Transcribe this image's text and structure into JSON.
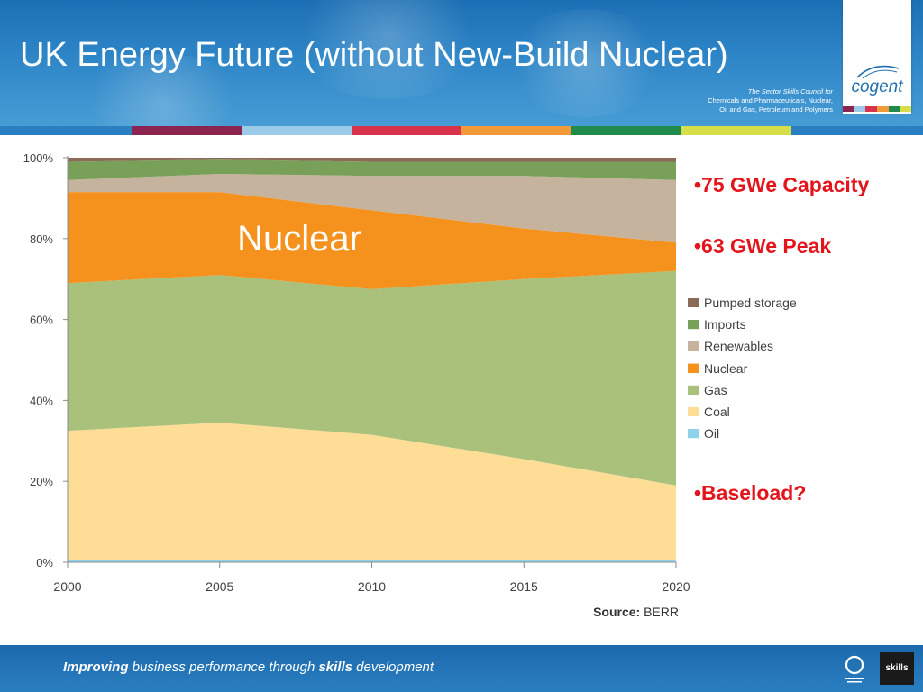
{
  "slide": {
    "title": "UK Energy Future (without New-Build Nuclear)",
    "council_line1": "The Sector Skills Council for",
    "council_line2": "Chemicals and Pharmaceuticals, Nuclear,",
    "council_line3": "Oil and Gas, Petroleum and Polymers",
    "logo_text": "cogent",
    "footer_word1": "Improving",
    "footer_word2": " business performance through ",
    "footer_word3": "skills",
    "footer_word4": " development",
    "skills_logo": "skills"
  },
  "colors": {
    "stripe_bar": [
      "#2a7fc0",
      "#8c2450",
      "#9ccbe8",
      "#d8334a",
      "#f29a3a",
      "#1e8a4c",
      "#d6df4a",
      "#2a7fc0"
    ],
    "logo_stripes": [
      "#8c2450",
      "#9ccbe8",
      "#d8334a",
      "#f29a3a",
      "#1e8a4c",
      "#d6df4a"
    ],
    "bullet": "#e3151c"
  },
  "bullets": [
    {
      "text": "•75 GWe Capacity"
    },
    {
      "text": "•63 GWe Peak"
    },
    {
      "text": "•Baseload?"
    }
  ],
  "chart_data": {
    "type": "area",
    "stacked": true,
    "percent": true,
    "x": [
      2000,
      2005,
      2010,
      2015,
      2020
    ],
    "x_ticks": [
      "2000",
      "2005",
      "2010",
      "2015",
      "2020"
    ],
    "y_ticks": [
      "0%",
      "20%",
      "40%",
      "60%",
      "80%",
      "100%"
    ],
    "ylim": [
      0,
      100
    ],
    "source_label": "Source:",
    "source_value": "BERR",
    "annotation": "Nuclear",
    "legend_position": "right",
    "series": [
      {
        "name": "Oil",
        "color": "#8fd3ea",
        "values": [
          0.5,
          0.5,
          0.5,
          0.5,
          0.5
        ]
      },
      {
        "name": "Coal",
        "color": "#fedd96",
        "values": [
          32,
          34,
          31,
          25,
          18.5
        ]
      },
      {
        "name": "Gas",
        "color": "#a9c17a",
        "values": [
          36.5,
          36.5,
          36,
          44.5,
          53
        ]
      },
      {
        "name": "Nuclear",
        "color": "#f5921e",
        "values": [
          22.5,
          20.5,
          19.5,
          12.5,
          7
        ]
      },
      {
        "name": "Renewables",
        "color": "#c6b39d",
        "values": [
          3,
          4.5,
          8.5,
          13,
          15.5
        ]
      },
      {
        "name": "Imports",
        "color": "#78a058",
        "values": [
          4.5,
          3.5,
          3.5,
          3.5,
          4.5
        ]
      },
      {
        "name": "Pumped storage",
        "color": "#8c6a58",
        "values": [
          1,
          0.5,
          1,
          1,
          1
        ]
      }
    ]
  }
}
